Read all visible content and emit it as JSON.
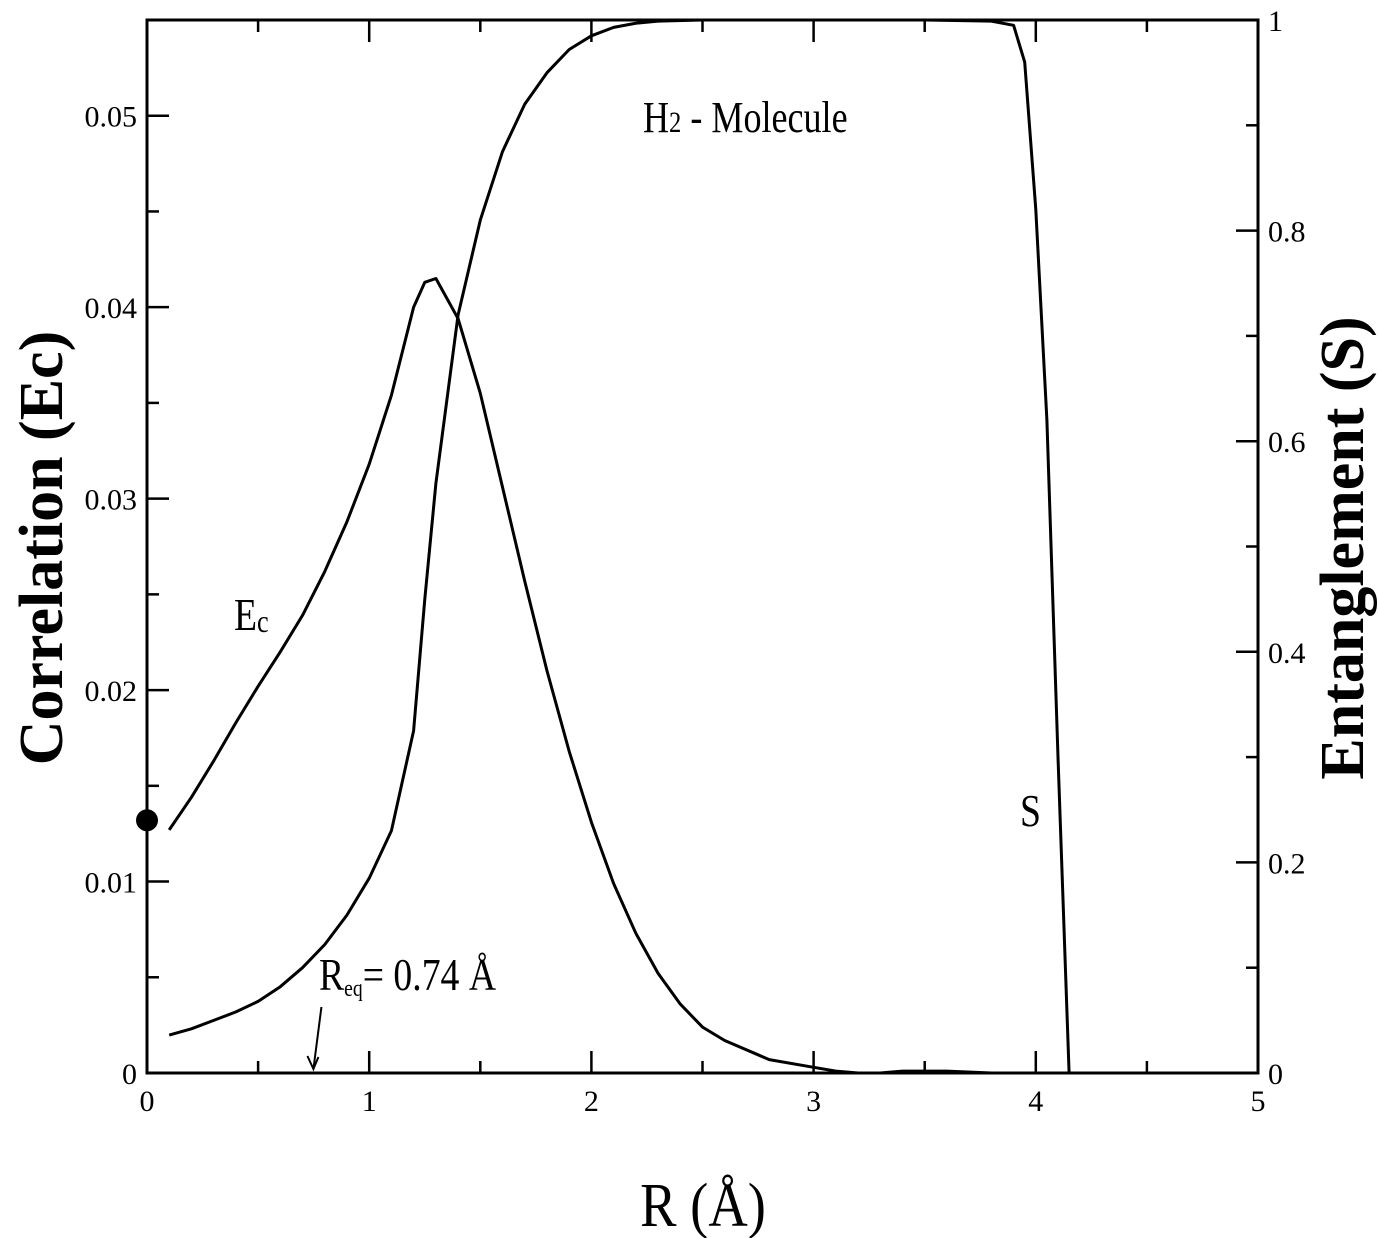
{
  "chart_data": {
    "type": "line",
    "title": "H2 - Molecule",
    "title_main": "H",
    "title_sub": "2",
    "title_rest": " - Molecule",
    "xlabel": "R (Å)",
    "ylabel_left": "Correlation (Ec)",
    "ylabel_right": "Entanglement (S)",
    "xlim": [
      0,
      5
    ],
    "ylim_left": [
      0,
      0.055
    ],
    "ylim_right": [
      0,
      1
    ],
    "x_ticks": [
      "0",
      "1",
      "2",
      "3",
      "4",
      "5"
    ],
    "y_left_ticks": [
      "0",
      "0.01",
      "0.02",
      "0.03",
      "0.04",
      "0.05"
    ],
    "y_right_ticks": [
      "0",
      "0.2",
      "0.4",
      "0.6",
      "0.8",
      "1"
    ],
    "grid": false,
    "series": [
      {
        "name": "Ec",
        "axis": "left",
        "x": [
          0.1,
          0.2,
          0.3,
          0.4,
          0.5,
          0.6,
          0.7,
          0.8,
          0.9,
          1.0,
          1.1,
          1.2,
          1.25,
          1.3,
          1.4,
          1.5,
          1.6,
          1.7,
          1.8,
          1.9,
          2.0,
          2.1,
          2.2,
          2.3,
          2.4,
          2.5,
          2.6,
          2.8,
          3.0,
          3.1,
          3.2,
          3.3,
          3.4,
          3.5,
          3.6,
          3.8,
          3.9,
          4.0,
          4.1
        ],
        "values": [
          0.0127,
          0.0144,
          0.0163,
          0.0183,
          0.0202,
          0.022,
          0.0239,
          0.0262,
          0.0288,
          0.0318,
          0.0354,
          0.04,
          0.0413,
          0.0415,
          0.0394,
          0.0355,
          0.0306,
          0.0257,
          0.021,
          0.0168,
          0.0131,
          0.0099,
          0.0073,
          0.0052,
          0.0036,
          0.0024,
          0.0017,
          0.0007,
          0.0003,
          0.0001,
          0.0,
          0.0,
          0.0001,
          0.0001,
          0.0001,
          0.0,
          0.0,
          0.0,
          0.0
        ]
      },
      {
        "name": "S",
        "axis": "right",
        "x": [
          0.1,
          0.2,
          0.3,
          0.4,
          0.5,
          0.6,
          0.7,
          0.8,
          0.9,
          1.0,
          1.1,
          1.2,
          1.25,
          1.3,
          1.4,
          1.5,
          1.6,
          1.7,
          1.8,
          1.9,
          2.0,
          2.1,
          2.2,
          2.3,
          2.5,
          3.0,
          3.5,
          3.8,
          3.9,
          3.95,
          4.0,
          4.05,
          4.1,
          4.15
        ],
        "values": [
          0.036,
          0.042,
          0.05,
          0.058,
          0.068,
          0.082,
          0.1,
          0.122,
          0.15,
          0.185,
          0.23,
          0.325,
          0.45,
          0.56,
          0.72,
          0.81,
          0.875,
          0.92,
          0.95,
          0.972,
          0.985,
          0.993,
          0.997,
          0.999,
          1.0,
          1.0,
          1.0,
          0.999,
          0.995,
          0.96,
          0.82,
          0.62,
          0.3,
          0.0
        ]
      }
    ],
    "annotations": [
      {
        "text_main": "E",
        "text_sub": "c",
        "x": 0.4,
        "y_left": 0.0235
      },
      {
        "text": "S",
        "x": 3.95,
        "y_left": 0.0137
      },
      {
        "text_main": "R",
        "text_sub": "eq",
        "text_rest": "= 0.74 Å",
        "arrow_to_x": 0.74,
        "arrow_to_y_left": 0
      }
    ],
    "marker": {
      "x": 0,
      "y_left": 0.0132,
      "style": "filled-circle"
    }
  }
}
